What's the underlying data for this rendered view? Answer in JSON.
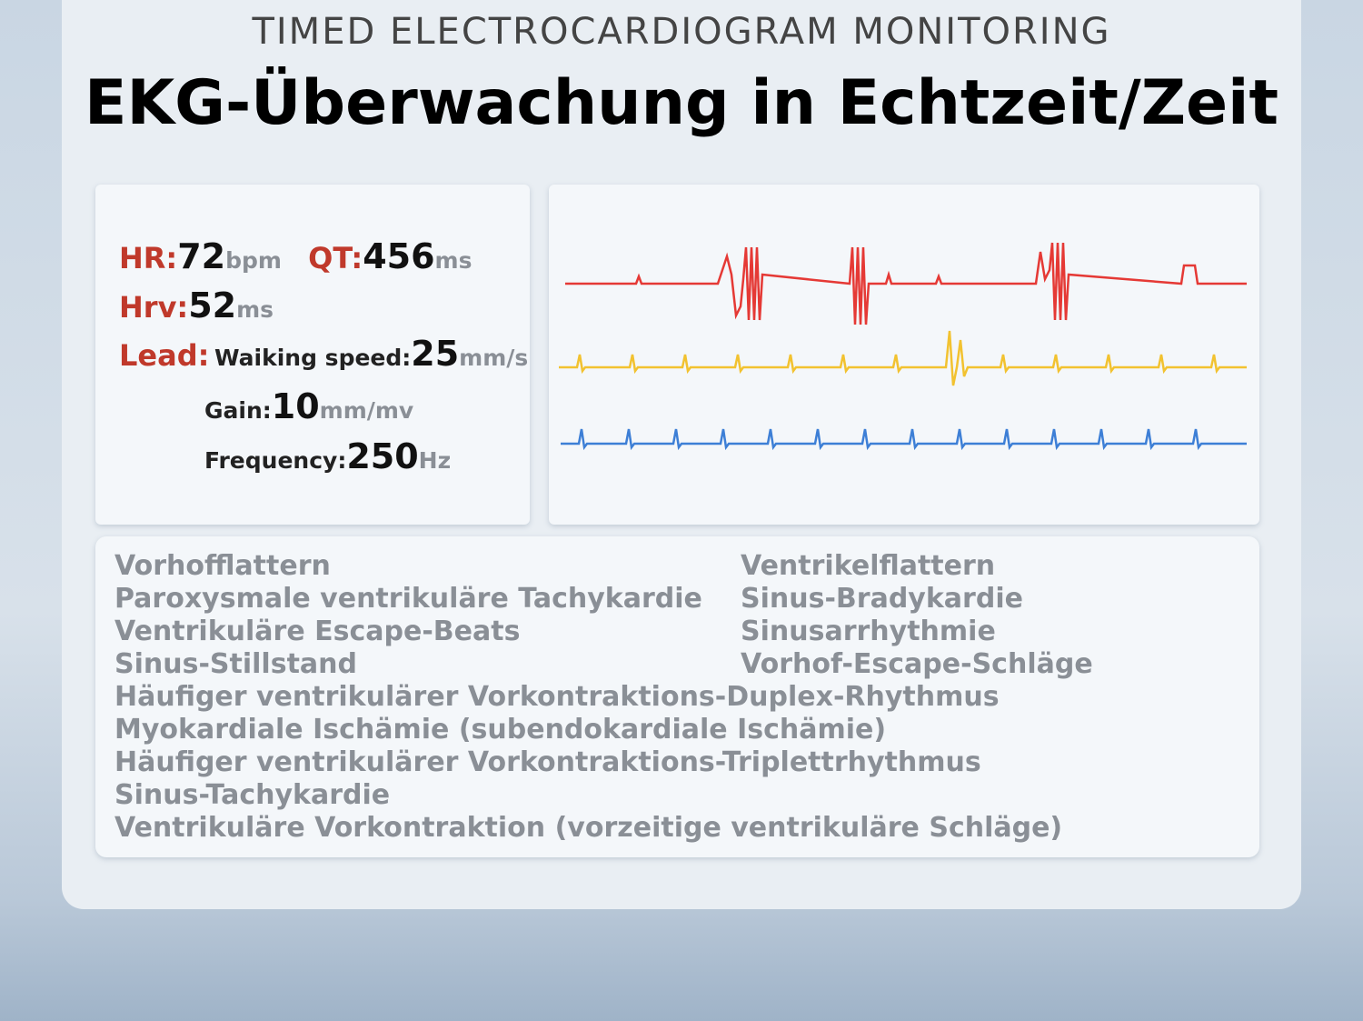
{
  "header": {
    "subtitle": "TIMED ELECTROCARDIOGRAM MONITORING",
    "title": "EKG-Überwachung in Echtzeit/Zeit"
  },
  "metrics": {
    "hr": {
      "label": "HR:",
      "value": 72,
      "unit": "bpm"
    },
    "qt": {
      "label": "QT:",
      "value": 456,
      "unit": "ms"
    },
    "hrv": {
      "label": "Hrv:",
      "value": 52,
      "unit": "ms"
    },
    "lead": {
      "label": "Lead:"
    },
    "speed": {
      "label": "Waiking speed:",
      "value": 25,
      "unit": "mm/s"
    },
    "gain": {
      "label": "Gain:",
      "value": 10,
      "unit": "mm/mv"
    },
    "frequency": {
      "label": "Frequency:",
      "value": 250,
      "unit": "Hz"
    }
  },
  "conditions": {
    "left": [
      "Vorhofflattern",
      "Paroxysmale ventrikuläre Tachykardie",
      "Ventrikuläre Escape-Beats",
      "Sinus-Stillstand"
    ],
    "right": [
      "Ventrikelflattern",
      "Sinus-Bradykardie",
      "Sinusarrhythmie",
      "Vorhof-Escape-Schläge"
    ],
    "full": [
      "Häufiger ventrikulärer Vorkontraktions-Duplex-Rhythmus",
      "Myokardiale Ischämie (subendokardiale Ischämie)",
      "Häufiger ventrikulärer Vorkontraktions-Triplettrhythmus",
      "Sinus-Tachykardie",
      "Ventrikuläre Vorkontraktion (vorzeitige ventrikuläre Schläge)"
    ]
  }
}
